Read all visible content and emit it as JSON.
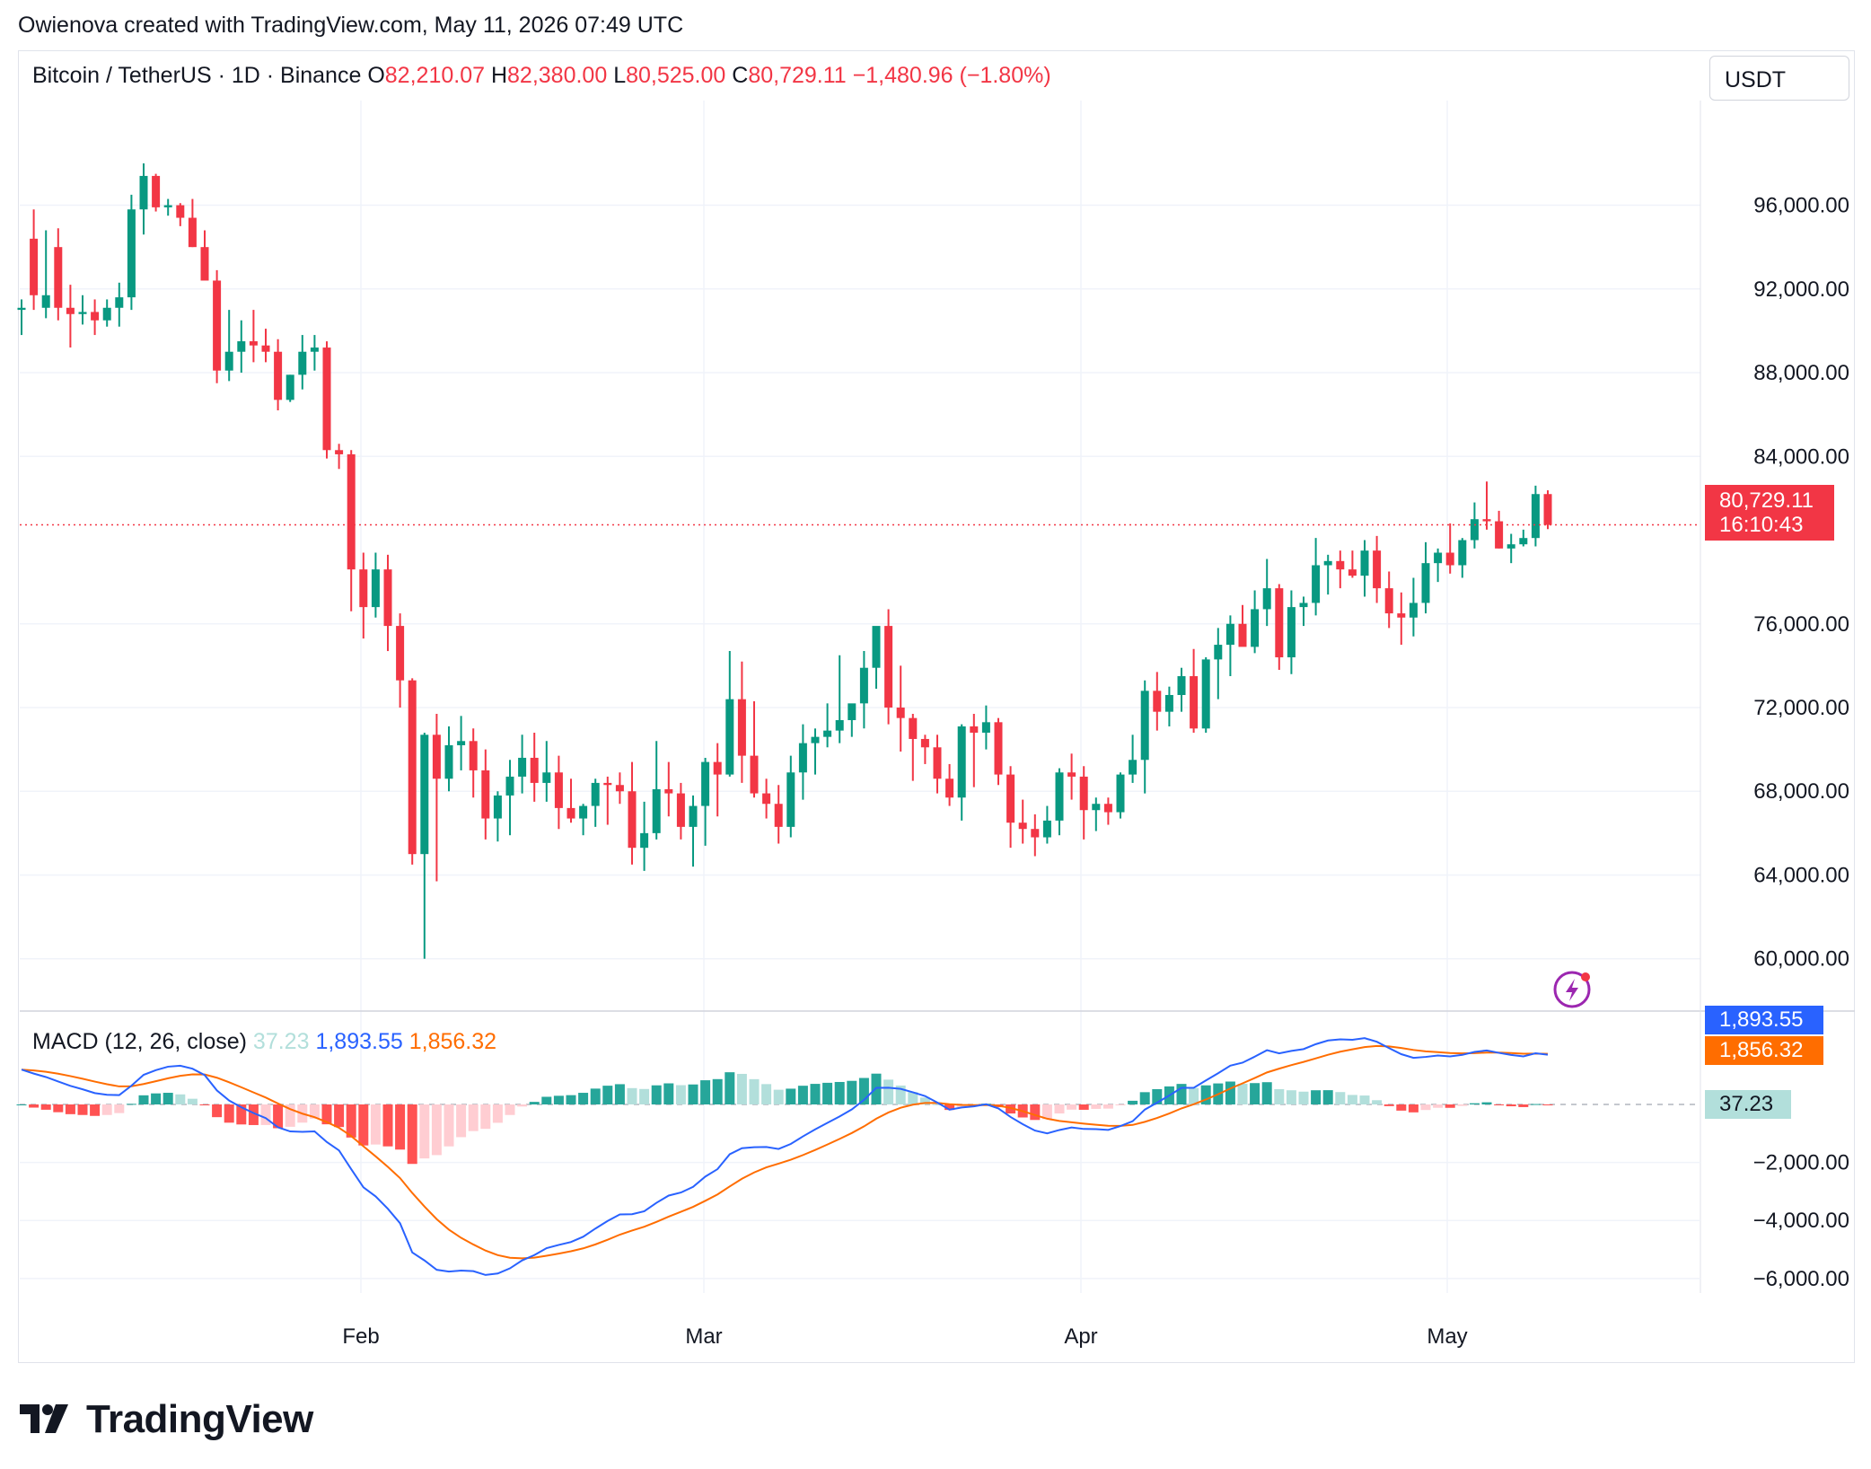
{
  "header": {
    "caption": "Owienova created with TradingView.com, May 11, 2026 07:49 UTC"
  },
  "legend": {
    "symbol": "Bitcoin / TetherUS · 1D · Binance",
    "o_label": "O",
    "o_value": "82,210.07",
    "h_label": "H",
    "h_value": "82,380.00",
    "l_label": "L",
    "l_value": "80,525.00",
    "c_label": "C",
    "c_value": "80,729.11",
    "change": "−1,480.96 (−1.80%)"
  },
  "currency": "USDT",
  "price_tag": {
    "price": "80,729.11",
    "countdown": "16:10:43",
    "color": "#f23645"
  },
  "macd_legend": {
    "name": "MACD (12, 26, close)",
    "hist": "37.23",
    "macd": "1,893.55",
    "signal": "1,856.32"
  },
  "macd_tags": {
    "macd": "1,893.55",
    "signal": "1,856.32",
    "hist": "37.23"
  },
  "brand": {
    "name": "TradingView"
  },
  "colors": {
    "up": "#089981",
    "down": "#f23645",
    "macd": "#2962ff",
    "signal": "#ff6d00",
    "hist_up_strong": "#26a69a",
    "hist_up_weak": "#b2dfdb",
    "hist_down_strong": "#ff5252",
    "hist_down_weak": "#ffcdd2"
  },
  "icons": {
    "alert": "lightning-alert-icon",
    "logo": "tradingview-logo-icon"
  },
  "chart_data": {
    "type": "candlestick",
    "title": "Bitcoin / TetherUS · 1D · Binance",
    "y_ticks": [
      "96,000.00",
      "92,000.00",
      "88,000.00",
      "84,000.00",
      "76,000.00",
      "72,000.00",
      "68,000.00",
      "64,000.00",
      "60,000.00"
    ],
    "y_tick_values": [
      96000,
      92000,
      88000,
      84000,
      76000,
      72000,
      68000,
      64000,
      60000
    ],
    "ylim": [
      57500,
      101000
    ],
    "x_ticks": [
      "Feb",
      "Mar",
      "Apr",
      "May"
    ],
    "last_price": 80729.11,
    "candles_ohlc": [
      [
        91000,
        91500,
        89800,
        91100
      ],
      [
        94400,
        95800,
        91000,
        91700
      ],
      [
        91100,
        94800,
        90600,
        91700
      ],
      [
        94000,
        94900,
        90500,
        91100
      ],
      [
        91100,
        92200,
        89200,
        90800
      ],
      [
        90800,
        91700,
        90300,
        90900
      ],
      [
        90900,
        91500,
        89800,
        90500
      ],
      [
        90500,
        91500,
        90200,
        91100
      ],
      [
        91100,
        92300,
        90200,
        91600
      ],
      [
        91600,
        96500,
        91000,
        95800
      ],
      [
        95800,
        98000,
        94600,
        97400
      ],
      [
        97400,
        97500,
        95700,
        95900
      ],
      [
        95900,
        96300,
        95500,
        96000
      ],
      [
        96000,
        96100,
        95000,
        95400
      ],
      [
        95400,
        96300,
        94000,
        94000
      ],
      [
        94000,
        94800,
        92500,
        92400
      ],
      [
        92400,
        92900,
        87500,
        88100
      ],
      [
        88100,
        91000,
        87600,
        89000
      ],
      [
        89000,
        90500,
        88000,
        89500
      ],
      [
        89500,
        91000,
        88500,
        89300
      ],
      [
        89300,
        90100,
        88500,
        89000
      ],
      [
        89000,
        89600,
        86200,
        86700
      ],
      [
        86700,
        87900,
        86600,
        87900
      ],
      [
        87900,
        89800,
        87200,
        89000
      ],
      [
        89000,
        89800,
        88100,
        89200
      ],
      [
        89200,
        89500,
        83900,
        84300
      ],
      [
        84300,
        84600,
        83400,
        84100
      ],
      [
        84100,
        84300,
        76600,
        78600
      ],
      [
        78600,
        79400,
        75300,
        76800
      ],
      [
        76800,
        79400,
        76300,
        78600
      ],
      [
        78600,
        79300,
        74700,
        75900
      ],
      [
        75900,
        76500,
        72000,
        73300
      ],
      [
        73300,
        73400,
        64500,
        65000
      ],
      [
        65000,
        70800,
        60000,
        70700
      ],
      [
        70700,
        71700,
        63700,
        68600
      ],
      [
        68600,
        71100,
        68000,
        70200
      ],
      [
        70200,
        71600,
        69000,
        70400
      ],
      [
        70400,
        71000,
        67700,
        69000
      ],
      [
        69000,
        70000,
        65700,
        66700
      ],
      [
        66700,
        68000,
        65600,
        67800
      ],
      [
        67800,
        69500,
        65900,
        68700
      ],
      [
        68700,
        70700,
        67900,
        69600
      ],
      [
        69600,
        70800,
        67500,
        68400
      ],
      [
        68400,
        70400,
        67500,
        68900
      ],
      [
        68900,
        69700,
        66200,
        67200
      ],
      [
        67200,
        68600,
        66500,
        66700
      ],
      [
        66700,
        67400,
        65900,
        67300
      ],
      [
        67300,
        68600,
        66300,
        68400
      ],
      [
        68400,
        68700,
        66400,
        68300
      ],
      [
        68300,
        68900,
        67400,
        68000
      ],
      [
        68000,
        69400,
        64500,
        65300
      ],
      [
        65300,
        67500,
        64200,
        66000
      ],
      [
        66000,
        70400,
        65700,
        68100
      ],
      [
        68100,
        69400,
        66800,
        67900
      ],
      [
        67900,
        68400,
        65700,
        66300
      ],
      [
        66300,
        67800,
        64400,
        67300
      ],
      [
        67300,
        69600,
        65400,
        69400
      ],
      [
        69400,
        70300,
        66800,
        68800
      ],
      [
        68800,
        74700,
        68700,
        72400
      ],
      [
        72400,
        74200,
        68400,
        69700
      ],
      [
        69700,
        72300,
        67700,
        67900
      ],
      [
        67900,
        68600,
        66700,
        67400
      ],
      [
        67400,
        68300,
        65500,
        66300
      ],
      [
        66300,
        69700,
        65800,
        68900
      ],
      [
        68900,
        71200,
        67600,
        70300
      ],
      [
        70300,
        71000,
        68800,
        70600
      ],
      [
        70600,
        72200,
        70100,
        70900
      ],
      [
        70900,
        74500,
        70300,
        71400
      ],
      [
        71400,
        71800,
        70600,
        72200
      ],
      [
        72200,
        74700,
        71000,
        73900
      ],
      [
        73900,
        75800,
        72900,
        75900
      ],
      [
        75900,
        76700,
        71200,
        72000
      ],
      [
        72000,
        74000,
        69900,
        71500
      ],
      [
        71500,
        71700,
        68500,
        70500
      ],
      [
        70500,
        70700,
        69300,
        70100
      ],
      [
        70100,
        70700,
        67900,
        68600
      ],
      [
        68600,
        69300,
        67300,
        67700
      ],
      [
        67700,
        71200,
        66600,
        71100
      ],
      [
        71100,
        71700,
        68200,
        70800
      ],
      [
        70800,
        72100,
        70000,
        71300
      ],
      [
        71300,
        71500,
        68300,
        68800
      ],
      [
        68800,
        69200,
        65300,
        66500
      ],
      [
        66500,
        67600,
        65500,
        66200
      ],
      [
        66200,
        66900,
        64900,
        65800
      ],
      [
        65800,
        67300,
        65500,
        66600
      ],
      [
        66600,
        69100,
        65900,
        68900
      ],
      [
        68900,
        69800,
        67600,
        68700
      ],
      [
        68700,
        69200,
        65700,
        67100
      ],
      [
        67100,
        67700,
        66100,
        67400
      ],
      [
        67400,
        67700,
        66400,
        67000
      ],
      [
        67000,
        68900,
        66700,
        68800
      ],
      [
        68800,
        70700,
        68400,
        69500
      ],
      [
        69500,
        73300,
        67900,
        72800
      ],
      [
        72800,
        73700,
        70900,
        71800
      ],
      [
        71800,
        73000,
        71100,
        72600
      ],
      [
        72600,
        73900,
        71800,
        73500
      ],
      [
        73500,
        74800,
        70800,
        71000
      ],
      [
        71000,
        74400,
        70800,
        74300
      ],
      [
        74300,
        75800,
        72400,
        75000
      ],
      [
        75000,
        76400,
        73500,
        76000
      ],
      [
        76000,
        76900,
        75400,
        74900
      ],
      [
        74900,
        77600,
        74600,
        76700
      ],
      [
        76700,
        79100,
        75900,
        77700
      ],
      [
        77700,
        77900,
        73800,
        74400
      ],
      [
        74400,
        77600,
        73600,
        76800
      ],
      [
        76800,
        77300,
        75900,
        77000
      ],
      [
        77000,
        80100,
        76400,
        78800
      ],
      [
        78800,
        79300,
        77400,
        79000
      ],
      [
        79000,
        79500,
        77700,
        78600
      ],
      [
        78600,
        79500,
        78200,
        78300
      ],
      [
        78300,
        80000,
        77300,
        79500
      ],
      [
        79500,
        80200,
        77000,
        77700
      ],
      [
        77700,
        78500,
        75800,
        76500
      ],
      [
        76500,
        77500,
        75000,
        76300
      ],
      [
        76300,
        78200,
        75400,
        77000
      ],
      [
        77000,
        79900,
        76500,
        78900
      ],
      [
        78900,
        79600,
        78000,
        79400
      ],
      [
        79400,
        80800,
        78400,
        78800
      ],
      [
        78800,
        80100,
        78200,
        80000
      ],
      [
        80000,
        81800,
        79600,
        81000
      ],
      [
        81000,
        82800,
        80500,
        80900
      ],
      [
        80900,
        81400,
        79600,
        79600
      ],
      [
        79600,
        80300,
        78900,
        79800
      ],
      [
        79800,
        80500,
        79700,
        80100
      ],
      [
        80100,
        82600,
        79700,
        82200
      ],
      [
        82200,
        82380,
        80525,
        80729
      ]
    ],
    "macd_series": {
      "macd_last": 1893.55,
      "signal_last": 1856.32,
      "histogram_last": 37.23,
      "y_ticks": [
        "−2,000.00",
        "−4,000.00",
        "−6,000.00"
      ],
      "y_tick_values": [
        -2000,
        -4000,
        -6000
      ],
      "ylim": [
        -6500,
        2600
      ]
    },
    "legend_position": "top-left"
  }
}
